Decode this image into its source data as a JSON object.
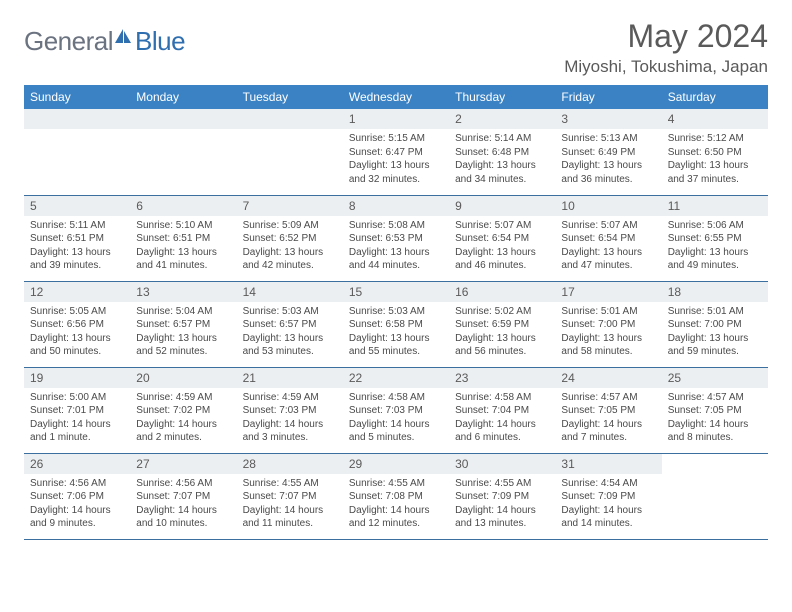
{
  "logo": {
    "general": "General",
    "blue": "Blue"
  },
  "title": "May 2024",
  "location": "Miyoshi, Tokushima, Japan",
  "colors": {
    "header_bg": "#3b82c4",
    "header_text": "#ffffff",
    "daynum_bg": "#eceff1",
    "border": "#3b6fa0",
    "text": "#5a5a5a"
  },
  "day_headers": [
    "Sunday",
    "Monday",
    "Tuesday",
    "Wednesday",
    "Thursday",
    "Friday",
    "Saturday"
  ],
  "weeks": [
    [
      null,
      null,
      null,
      {
        "n": "1",
        "sr": "5:15 AM",
        "ss": "6:47 PM",
        "dl": "13 hours and 32 minutes."
      },
      {
        "n": "2",
        "sr": "5:14 AM",
        "ss": "6:48 PM",
        "dl": "13 hours and 34 minutes."
      },
      {
        "n": "3",
        "sr": "5:13 AM",
        "ss": "6:49 PM",
        "dl": "13 hours and 36 minutes."
      },
      {
        "n": "4",
        "sr": "5:12 AM",
        "ss": "6:50 PM",
        "dl": "13 hours and 37 minutes."
      }
    ],
    [
      {
        "n": "5",
        "sr": "5:11 AM",
        "ss": "6:51 PM",
        "dl": "13 hours and 39 minutes."
      },
      {
        "n": "6",
        "sr": "5:10 AM",
        "ss": "6:51 PM",
        "dl": "13 hours and 41 minutes."
      },
      {
        "n": "7",
        "sr": "5:09 AM",
        "ss": "6:52 PM",
        "dl": "13 hours and 42 minutes."
      },
      {
        "n": "8",
        "sr": "5:08 AM",
        "ss": "6:53 PM",
        "dl": "13 hours and 44 minutes."
      },
      {
        "n": "9",
        "sr": "5:07 AM",
        "ss": "6:54 PM",
        "dl": "13 hours and 46 minutes."
      },
      {
        "n": "10",
        "sr": "5:07 AM",
        "ss": "6:54 PM",
        "dl": "13 hours and 47 minutes."
      },
      {
        "n": "11",
        "sr": "5:06 AM",
        "ss": "6:55 PM",
        "dl": "13 hours and 49 minutes."
      }
    ],
    [
      {
        "n": "12",
        "sr": "5:05 AM",
        "ss": "6:56 PM",
        "dl": "13 hours and 50 minutes."
      },
      {
        "n": "13",
        "sr": "5:04 AM",
        "ss": "6:57 PM",
        "dl": "13 hours and 52 minutes."
      },
      {
        "n": "14",
        "sr": "5:03 AM",
        "ss": "6:57 PM",
        "dl": "13 hours and 53 minutes."
      },
      {
        "n": "15",
        "sr": "5:03 AM",
        "ss": "6:58 PM",
        "dl": "13 hours and 55 minutes."
      },
      {
        "n": "16",
        "sr": "5:02 AM",
        "ss": "6:59 PM",
        "dl": "13 hours and 56 minutes."
      },
      {
        "n": "17",
        "sr": "5:01 AM",
        "ss": "7:00 PM",
        "dl": "13 hours and 58 minutes."
      },
      {
        "n": "18",
        "sr": "5:01 AM",
        "ss": "7:00 PM",
        "dl": "13 hours and 59 minutes."
      }
    ],
    [
      {
        "n": "19",
        "sr": "5:00 AM",
        "ss": "7:01 PM",
        "dl": "14 hours and 1 minute."
      },
      {
        "n": "20",
        "sr": "4:59 AM",
        "ss": "7:02 PM",
        "dl": "14 hours and 2 minutes."
      },
      {
        "n": "21",
        "sr": "4:59 AM",
        "ss": "7:03 PM",
        "dl": "14 hours and 3 minutes."
      },
      {
        "n": "22",
        "sr": "4:58 AM",
        "ss": "7:03 PM",
        "dl": "14 hours and 5 minutes."
      },
      {
        "n": "23",
        "sr": "4:58 AM",
        "ss": "7:04 PM",
        "dl": "14 hours and 6 minutes."
      },
      {
        "n": "24",
        "sr": "4:57 AM",
        "ss": "7:05 PM",
        "dl": "14 hours and 7 minutes."
      },
      {
        "n": "25",
        "sr": "4:57 AM",
        "ss": "7:05 PM",
        "dl": "14 hours and 8 minutes."
      }
    ],
    [
      {
        "n": "26",
        "sr": "4:56 AM",
        "ss": "7:06 PM",
        "dl": "14 hours and 9 minutes."
      },
      {
        "n": "27",
        "sr": "4:56 AM",
        "ss": "7:07 PM",
        "dl": "14 hours and 10 minutes."
      },
      {
        "n": "28",
        "sr": "4:55 AM",
        "ss": "7:07 PM",
        "dl": "14 hours and 11 minutes."
      },
      {
        "n": "29",
        "sr": "4:55 AM",
        "ss": "7:08 PM",
        "dl": "14 hours and 12 minutes."
      },
      {
        "n": "30",
        "sr": "4:55 AM",
        "ss": "7:09 PM",
        "dl": "14 hours and 13 minutes."
      },
      {
        "n": "31",
        "sr": "4:54 AM",
        "ss": "7:09 PM",
        "dl": "14 hours and 14 minutes."
      },
      null
    ]
  ],
  "labels": {
    "sunrise": "Sunrise:",
    "sunset": "Sunset:",
    "daylight": "Daylight:"
  }
}
